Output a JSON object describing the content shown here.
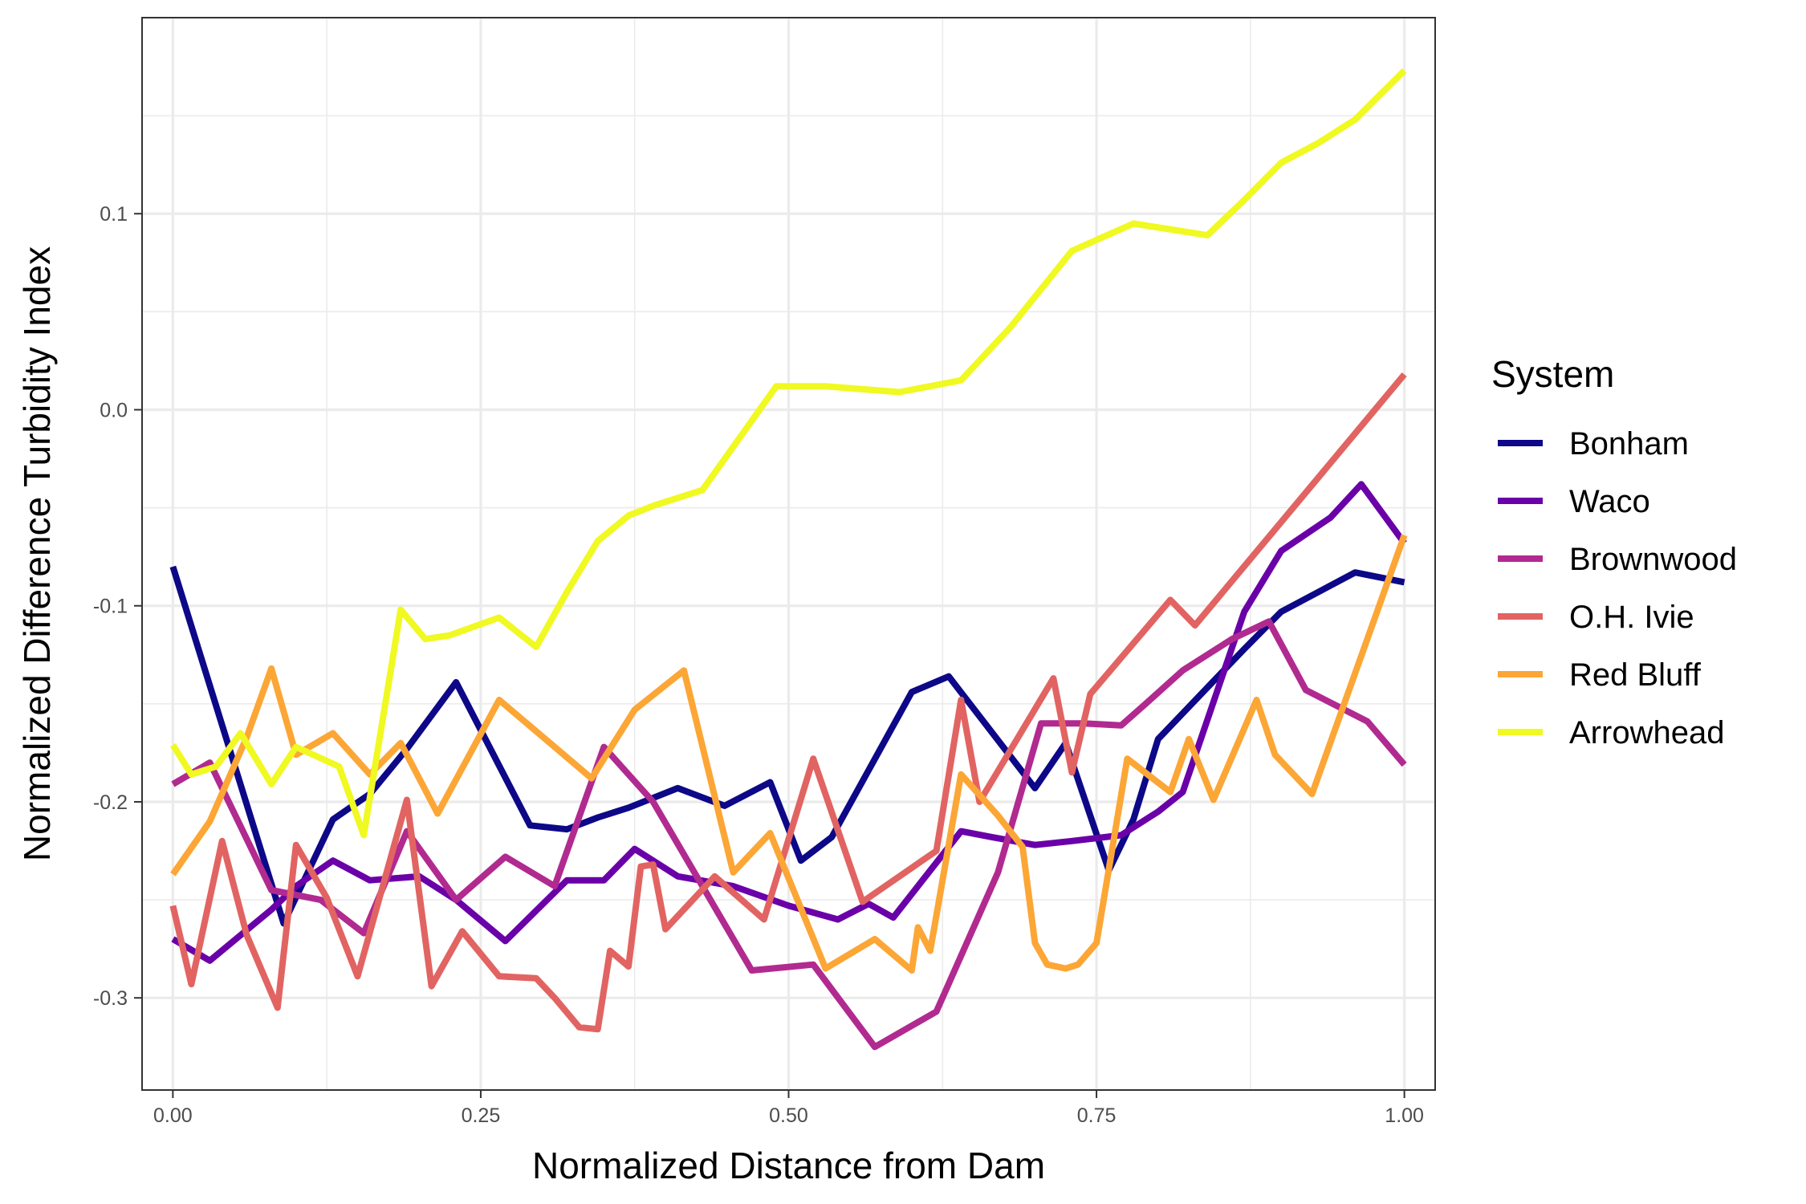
{
  "chart_data": {
    "type": "line",
    "xlabel": "Normalized Distance from Dam",
    "ylabel": "Normalized Difference Turbidity Index",
    "xlim": [
      -0.025,
      1.025
    ],
    "ylim": [
      -0.347,
      0.2
    ],
    "x_ticks": [
      0,
      0.25,
      0.5,
      0.75,
      1
    ],
    "x_tick_labels": [
      "0.00",
      "0.25",
      "0.50",
      "0.75",
      "1.00"
    ],
    "y_ticks": [
      -0.3,
      -0.2,
      -0.1,
      0.0,
      0.1
    ],
    "y_tick_labels": [
      "-0.3",
      "-0.2",
      "-0.1",
      "0.0",
      "0.1"
    ],
    "grid": true,
    "legend": {
      "title": "System",
      "position": "right"
    },
    "series": [
      {
        "name": "Bonham",
        "color": "#0d0887",
        "x": [
          0.0,
          0.09,
          0.13,
          0.16,
          0.19,
          0.23,
          0.29,
          0.32,
          0.345,
          0.37,
          0.41,
          0.448,
          0.485,
          0.51,
          0.535,
          0.6,
          0.63,
          0.7,
          0.725,
          0.76,
          0.78,
          0.8,
          0.87,
          0.9,
          0.96,
          1.0
        ],
        "y": [
          -0.08,
          -0.262,
          -0.209,
          -0.196,
          -0.173,
          -0.139,
          -0.212,
          -0.214,
          -0.208,
          -0.203,
          -0.193,
          -0.202,
          -0.19,
          -0.23,
          -0.218,
          -0.144,
          -0.136,
          -0.193,
          -0.17,
          -0.235,
          -0.209,
          -0.168,
          -0.122,
          -0.103,
          -0.083,
          -0.088
        ]
      },
      {
        "name": "Waco",
        "color": "#6a00a8",
        "x": [
          0.0,
          0.03,
          0.08,
          0.1,
          0.13,
          0.16,
          0.2,
          0.23,
          0.27,
          0.32,
          0.35,
          0.375,
          0.41,
          0.455,
          0.5,
          0.54,
          0.565,
          0.585,
          0.64,
          0.665,
          0.7,
          0.73,
          0.77,
          0.8,
          0.82,
          0.87,
          0.9,
          0.94,
          0.965,
          1.0
        ],
        "y": [
          -0.27,
          -0.281,
          -0.255,
          -0.243,
          -0.23,
          -0.24,
          -0.238,
          -0.25,
          -0.271,
          -0.24,
          -0.24,
          -0.224,
          -0.238,
          -0.243,
          -0.253,
          -0.26,
          -0.252,
          -0.259,
          -0.215,
          -0.218,
          -0.222,
          -0.22,
          -0.217,
          -0.205,
          -0.195,
          -0.103,
          -0.072,
          -0.055,
          -0.038,
          -0.068
        ]
      },
      {
        "name": "Brownwood",
        "color": "#b12a90",
        "x": [
          0.0,
          0.03,
          0.08,
          0.12,
          0.155,
          0.19,
          0.23,
          0.27,
          0.31,
          0.35,
          0.39,
          0.47,
          0.52,
          0.57,
          0.62,
          0.67,
          0.705,
          0.74,
          0.77,
          0.79,
          0.82,
          0.86,
          0.89,
          0.92,
          0.97,
          1.0
        ],
        "y": [
          -0.191,
          -0.18,
          -0.245,
          -0.25,
          -0.267,
          -0.215,
          -0.25,
          -0.228,
          -0.243,
          -0.172,
          -0.2,
          -0.286,
          -0.283,
          -0.325,
          -0.307,
          -0.236,
          -0.16,
          -0.16,
          -0.161,
          -0.15,
          -0.133,
          -0.117,
          -0.108,
          -0.143,
          -0.159,
          -0.181
        ]
      },
      {
        "name": "O.H. Ivie",
        "color": "#e16462",
        "x": [
          0.0,
          0.015,
          0.04,
          0.06,
          0.085,
          0.1,
          0.125,
          0.15,
          0.19,
          0.21,
          0.235,
          0.265,
          0.295,
          0.31,
          0.33,
          0.345,
          0.355,
          0.37,
          0.38,
          0.39,
          0.4,
          0.44,
          0.48,
          0.52,
          0.56,
          0.62,
          0.64,
          0.655,
          0.715,
          0.73,
          0.745,
          0.81,
          0.83,
          1.0
        ],
        "y": [
          -0.253,
          -0.293,
          -0.22,
          -0.268,
          -0.305,
          -0.222,
          -0.249,
          -0.289,
          -0.199,
          -0.294,
          -0.266,
          -0.289,
          -0.29,
          -0.3,
          -0.315,
          -0.316,
          -0.276,
          -0.284,
          -0.233,
          -0.232,
          -0.265,
          -0.238,
          -0.26,
          -0.178,
          -0.251,
          -0.225,
          -0.148,
          -0.2,
          -0.137,
          -0.185,
          -0.145,
          -0.097,
          -0.11,
          0.018
        ]
      },
      {
        "name": "Red Bluff",
        "color": "#fca636",
        "x": [
          0.0,
          0.03,
          0.06,
          0.08,
          0.1,
          0.13,
          0.16,
          0.185,
          0.215,
          0.265,
          0.31,
          0.34,
          0.375,
          0.415,
          0.455,
          0.485,
          0.53,
          0.57,
          0.6,
          0.605,
          0.615,
          0.64,
          0.67,
          0.69,
          0.7,
          0.71,
          0.725,
          0.735,
          0.75,
          0.775,
          0.81,
          0.825,
          0.845,
          0.88,
          0.895,
          0.925,
          1.0
        ],
        "y": [
          -0.237,
          -0.21,
          -0.167,
          -0.132,
          -0.176,
          -0.165,
          -0.186,
          -0.17,
          -0.206,
          -0.148,
          -0.172,
          -0.188,
          -0.153,
          -0.133,
          -0.236,
          -0.216,
          -0.285,
          -0.27,
          -0.286,
          -0.264,
          -0.276,
          -0.186,
          -0.207,
          -0.223,
          -0.272,
          -0.283,
          -0.285,
          -0.283,
          -0.272,
          -0.178,
          -0.195,
          -0.168,
          -0.199,
          -0.148,
          -0.176,
          -0.196,
          -0.064
        ]
      },
      {
        "name": "Arrowhead",
        "color": "#f0f921",
        "x": [
          0.0,
          0.015,
          0.035,
          0.055,
          0.08,
          0.1,
          0.135,
          0.155,
          0.185,
          0.205,
          0.225,
          0.265,
          0.295,
          0.32,
          0.345,
          0.37,
          0.39,
          0.43,
          0.49,
          0.53,
          0.59,
          0.64,
          0.68,
          0.73,
          0.78,
          0.84,
          0.87,
          0.9,
          0.93,
          0.96,
          1.0
        ],
        "y": [
          -0.171,
          -0.186,
          -0.182,
          -0.165,
          -0.191,
          -0.172,
          -0.182,
          -0.217,
          -0.102,
          -0.117,
          -0.115,
          -0.106,
          -0.121,
          -0.093,
          -0.067,
          -0.054,
          -0.049,
          -0.041,
          0.012,
          0.012,
          0.009,
          0.015,
          0.042,
          0.081,
          0.095,
          0.089,
          0.107,
          0.126,
          0.136,
          0.148,
          0.173
        ]
      }
    ]
  }
}
